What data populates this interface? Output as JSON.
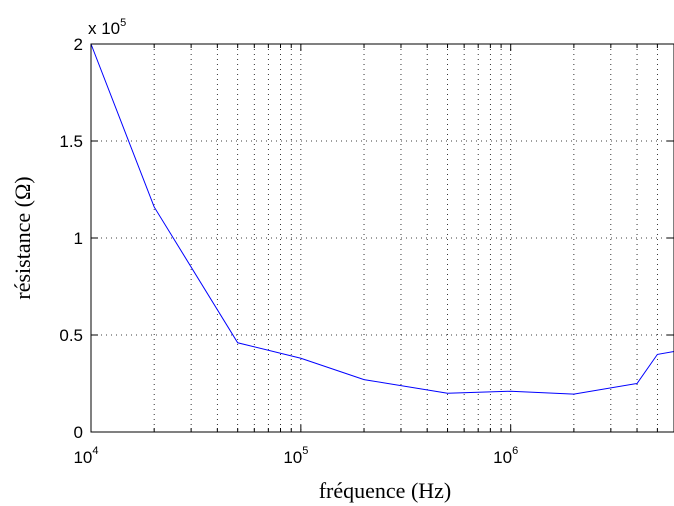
{
  "chart_data": {
    "type": "line",
    "title": "",
    "xlabel": "fréquence (Hz)",
    "ylabel": "résistance (Ω)",
    "x_scale": "log",
    "xlim": [
      10000,
      6000000
    ],
    "ylim": [
      0,
      200000
    ],
    "y_multiplier_label": {
      "prefix": "x 10",
      "exponent": "5"
    },
    "grid": true,
    "grid_style": "dotted",
    "line_color": "#0000ff",
    "x_ticks": [
      {
        "value": 10000,
        "base": "10",
        "exponent": "4"
      },
      {
        "value": 100000,
        "base": "10",
        "exponent": "5"
      },
      {
        "value": 1000000,
        "base": "10",
        "exponent": "6"
      }
    ],
    "y_ticks": [
      {
        "value": 0,
        "label": "0"
      },
      {
        "value": 50000,
        "label": "0.5"
      },
      {
        "value": 100000,
        "label": "1"
      },
      {
        "value": 150000,
        "label": "1.5"
      },
      {
        "value": 200000,
        "label": "2"
      }
    ],
    "series": [
      {
        "x": [
          10000,
          20000,
          50000,
          100000,
          200000,
          500000,
          1000000,
          2000000,
          4000000,
          5000000,
          6000000
        ],
        "y": [
          200000,
          116000,
          46000,
          38000,
          27000,
          20000,
          21000,
          19500,
          25000,
          40000,
          41500
        ]
      }
    ]
  }
}
